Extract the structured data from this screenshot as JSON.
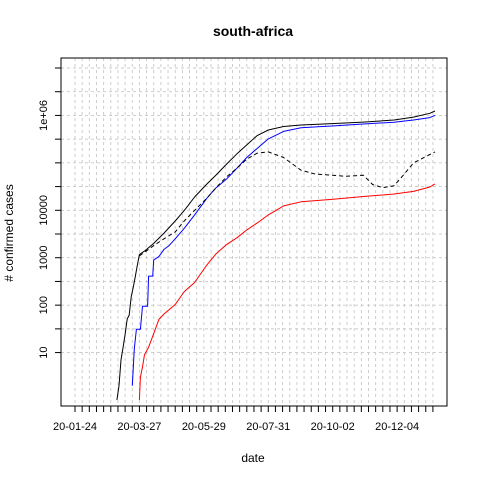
{
  "chart_data": {
    "type": "line",
    "title": "south-africa",
    "xlabel": "date",
    "ylabel": "# confirmed cases",
    "y_scale": "log",
    "ylim": [
      1,
      10000000
    ],
    "grid": true,
    "x_tick_labels": [
      "20-01-24",
      "20-03-27",
      "20-05-29",
      "20-07-31",
      "20-10-02",
      "20-12-04"
    ],
    "x_ticks": [
      "2020-01-24",
      "2020-03-27",
      "2020-05-29",
      "2020-07-31",
      "2020-10-02",
      "2020-12-04"
    ],
    "y_ticks": [
      10,
      100,
      1000,
      10000,
      100000,
      1000000,
      10000000
    ],
    "y_tick_labels": [
      "10",
      "100",
      "1000",
      "10000",
      "",
      "1e+06",
      ""
    ],
    "xlim": [
      "2020-01-24",
      "2021-01-12"
    ],
    "series": [
      {
        "color": "#000000",
        "dash": "solid",
        "points": [
          [
            "2020-03-05",
            1
          ],
          [
            "2020-03-07",
            2
          ],
          [
            "2020-03-09",
            7
          ],
          [
            "2020-03-11",
            13
          ],
          [
            "2020-03-13",
            24
          ],
          [
            "2020-03-15",
            51
          ],
          [
            "2020-03-17",
            62
          ],
          [
            "2020-03-19",
            150
          ],
          [
            "2020-03-21",
            240
          ],
          [
            "2020-03-23",
            402
          ],
          [
            "2020-03-25",
            709
          ],
          [
            "2020-03-27",
            1170
          ],
          [
            "2020-04-01",
            1380
          ],
          [
            "2020-04-10",
            2000
          ],
          [
            "2020-04-20",
            3300
          ],
          [
            "2020-05-01",
            5950
          ],
          [
            "2020-05-10",
            10000
          ],
          [
            "2020-05-20",
            19100
          ],
          [
            "2020-06-01",
            35800
          ],
          [
            "2020-06-10",
            55400
          ],
          [
            "2020-06-20",
            92700
          ],
          [
            "2020-07-01",
            160000
          ],
          [
            "2020-07-10",
            239000
          ],
          [
            "2020-07-20",
            373000
          ],
          [
            "2020-07-31",
            493000
          ],
          [
            "2020-08-15",
            583000
          ],
          [
            "2020-09-01",
            628000
          ],
          [
            "2020-10-01",
            674000
          ],
          [
            "2020-11-01",
            725000
          ],
          [
            "2020-12-01",
            800000
          ],
          [
            "2020-12-20",
            920000
          ],
          [
            "2021-01-05",
            1110000
          ],
          [
            "2021-01-10",
            1240000
          ]
        ]
      },
      {
        "color": "#0000ff",
        "dash": "solid",
        "points": [
          [
            "2020-03-20",
            2
          ],
          [
            "2020-03-22",
            12
          ],
          [
            "2020-03-24",
            31
          ],
          [
            "2020-03-28",
            31
          ],
          [
            "2020-03-30",
            95
          ],
          [
            "2020-04-04",
            95
          ],
          [
            "2020-04-05",
            410
          ],
          [
            "2020-04-09",
            410
          ],
          [
            "2020-04-10",
            900
          ],
          [
            "2020-04-15",
            1055
          ],
          [
            "2020-04-20",
            1500
          ],
          [
            "2020-04-25",
            1800
          ],
          [
            "2020-05-01",
            2500
          ],
          [
            "2020-05-10",
            4200
          ],
          [
            "2020-05-20",
            8000
          ],
          [
            "2020-06-01",
            18000
          ],
          [
            "2020-06-10",
            30000
          ],
          [
            "2020-06-20",
            45000
          ],
          [
            "2020-07-01",
            80000
          ],
          [
            "2020-07-10",
            130000
          ],
          [
            "2020-07-20",
            200000
          ],
          [
            "2020-07-31",
            320000
          ],
          [
            "2020-08-15",
            460000
          ],
          [
            "2020-09-01",
            550000
          ],
          [
            "2020-10-01",
            600000
          ],
          [
            "2020-11-01",
            660000
          ],
          [
            "2020-12-01",
            720000
          ],
          [
            "2020-12-20",
            800000
          ],
          [
            "2021-01-05",
            900000
          ],
          [
            "2021-01-10",
            1000000
          ]
        ]
      },
      {
        "color": "#ff0000",
        "dash": "solid",
        "points": [
          [
            "2020-03-27",
            1
          ],
          [
            "2020-03-28",
            3
          ],
          [
            "2020-03-30",
            5
          ],
          [
            "2020-04-01",
            9
          ],
          [
            "2020-04-05",
            13
          ],
          [
            "2020-04-10",
            25
          ],
          [
            "2020-04-15",
            50
          ],
          [
            "2020-04-20",
            65
          ],
          [
            "2020-05-01",
            103
          ],
          [
            "2020-05-10",
            194
          ],
          [
            "2020-05-20",
            300
          ],
          [
            "2020-06-01",
            705
          ],
          [
            "2020-06-10",
            1210
          ],
          [
            "2020-06-20",
            1874
          ],
          [
            "2020-07-01",
            2700
          ],
          [
            "2020-07-10",
            3860
          ],
          [
            "2020-07-20",
            5370
          ],
          [
            "2020-07-31",
            8000
          ],
          [
            "2020-08-15",
            12400
          ],
          [
            "2020-09-01",
            15100
          ],
          [
            "2020-10-01",
            17000
          ],
          [
            "2020-11-01",
            19500
          ],
          [
            "2020-12-01",
            22000
          ],
          [
            "2020-12-20",
            25000
          ],
          [
            "2021-01-05",
            31000
          ],
          [
            "2021-01-10",
            36000
          ]
        ]
      },
      {
        "color": "#000000",
        "dash": "dashed",
        "points": [
          [
            "2020-03-27",
            1100
          ],
          [
            "2020-04-01",
            1300
          ],
          [
            "2020-04-10",
            1800
          ],
          [
            "2020-04-20",
            2500
          ],
          [
            "2020-05-01",
            3500
          ],
          [
            "2020-05-10",
            6000
          ],
          [
            "2020-05-20",
            10000
          ],
          [
            "2020-06-01",
            18000
          ],
          [
            "2020-06-10",
            30000
          ],
          [
            "2020-06-20",
            50000
          ],
          [
            "2020-07-01",
            80000
          ],
          [
            "2020-07-10",
            120000
          ],
          [
            "2020-07-20",
            160000
          ],
          [
            "2020-07-31",
            170000
          ],
          [
            "2020-08-15",
            130000
          ],
          [
            "2020-09-01",
            70000
          ],
          [
            "2020-09-15",
            58000
          ],
          [
            "2020-10-01",
            55000
          ],
          [
            "2020-10-15",
            52000
          ],
          [
            "2020-11-01",
            55000
          ],
          [
            "2020-11-10",
            35000
          ],
          [
            "2020-11-20",
            30000
          ],
          [
            "2020-12-01",
            33000
          ],
          [
            "2020-12-10",
            55000
          ],
          [
            "2020-12-20",
            100000
          ],
          [
            "2021-01-05",
            150000
          ],
          [
            "2021-01-10",
            170000
          ]
        ]
      }
    ]
  }
}
